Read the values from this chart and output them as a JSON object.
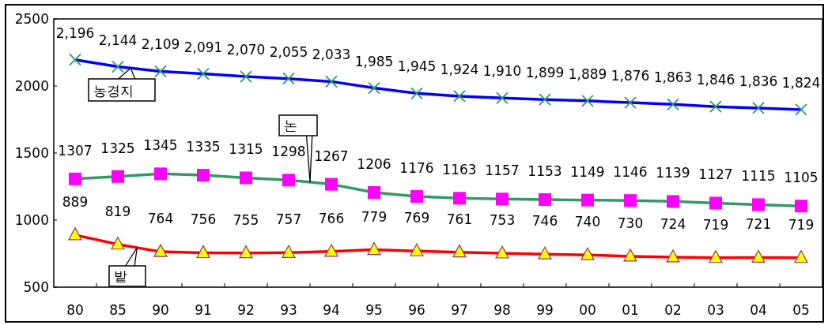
{
  "chart_data": {
    "type": "line",
    "categories": [
      "80",
      "85",
      "90",
      "91",
      "92",
      "93",
      "94",
      "95",
      "96",
      "97",
      "98",
      "99",
      "00",
      "01",
      "02",
      "03",
      "04",
      "05"
    ],
    "ylim": [
      500,
      2500
    ],
    "yticks": [
      500,
      1000,
      1500,
      2000,
      2500
    ],
    "grid": false,
    "series": [
      {
        "name": "농경지",
        "color": "#0000ff",
        "marker": "cross",
        "values": [
          2196,
          2144,
          2109,
          2091,
          2070,
          2055,
          2033,
          1985,
          1945,
          1924,
          1910,
          1899,
          1889,
          1876,
          1863,
          1846,
          1836,
          1824
        ],
        "value_labels": [
          "2,196",
          "2,144",
          "2,109",
          "2,091",
          "2,070",
          "2,055",
          "2,033",
          "1,985",
          "1,945",
          "1,924",
          "1,910",
          "1,899",
          "1,889",
          "1,876",
          "1,863",
          "1,846",
          "1,836",
          "1,824"
        ]
      },
      {
        "name": "논",
        "color": "#339966",
        "marker": "square",
        "values": [
          1307,
          1325,
          1345,
          1335,
          1315,
          1298,
          1267,
          1206,
          1176,
          1163,
          1157,
          1153,
          1149,
          1146,
          1139,
          1127,
          1115,
          1105
        ],
        "value_labels": [
          "1307",
          "1325",
          "1345",
          "1335",
          "1315",
          "1298",
          "1267",
          "1206",
          "1176",
          "1163",
          "1157",
          "1153",
          "1149",
          "1146",
          "1139",
          "1127",
          "1115",
          "1105"
        ]
      },
      {
        "name": "밭",
        "color": "#ff0000",
        "marker": "triangle",
        "values": [
          889,
          819,
          764,
          756,
          755,
          757,
          766,
          779,
          769,
          761,
          753,
          746,
          740,
          730,
          724,
          719,
          721,
          719
        ],
        "value_labels": [
          "889",
          "819",
          "764",
          "756",
          "755",
          "757",
          "766",
          "779",
          "769",
          "761",
          "753",
          "746",
          "740",
          "730",
          "724",
          "719",
          "721",
          "719"
        ]
      }
    ]
  }
}
